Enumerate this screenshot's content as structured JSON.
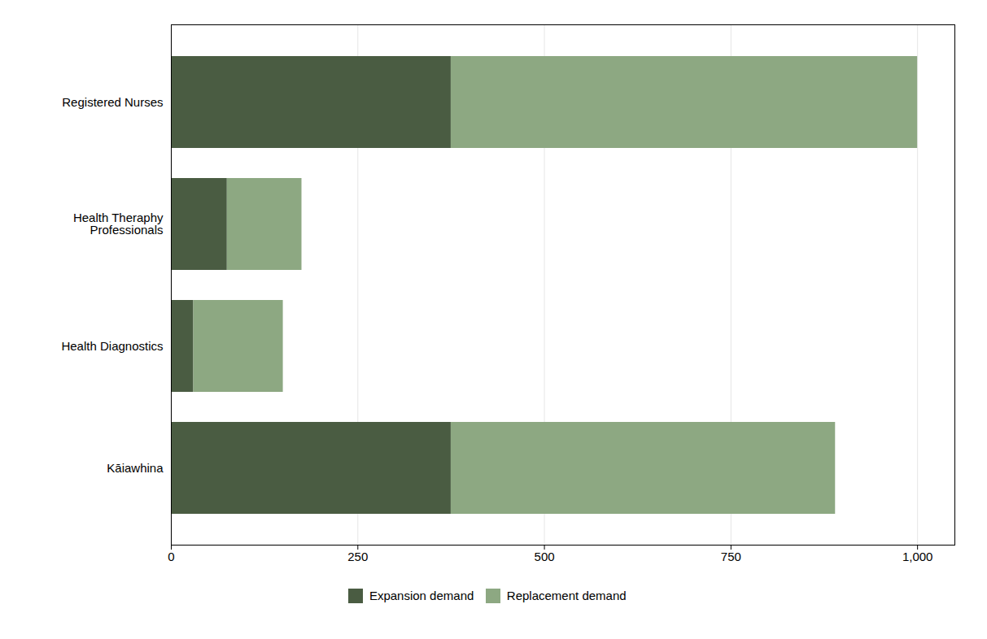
{
  "chart_data": {
    "type": "bar",
    "orientation": "horizontal",
    "stacked": true,
    "categories": [
      "Kāiawhina",
      "Health Diagnostics",
      "Health Theraphy\nProfessionals",
      "Registered Nurses"
    ],
    "series": [
      {
        "name": "Expansion demand",
        "color": "#4a5c42",
        "values": [
          375,
          30,
          75,
          375
        ]
      },
      {
        "name": "Replacement demand",
        "color": "#8da882",
        "values": [
          515,
          120,
          100,
          625
        ]
      }
    ],
    "xlim": [
      0,
      1050
    ],
    "xticks": [
      0,
      250,
      500,
      750,
      {
        "value": 1000,
        "label": "1,000"
      }
    ],
    "grid": true,
    "legend": "bottom"
  }
}
